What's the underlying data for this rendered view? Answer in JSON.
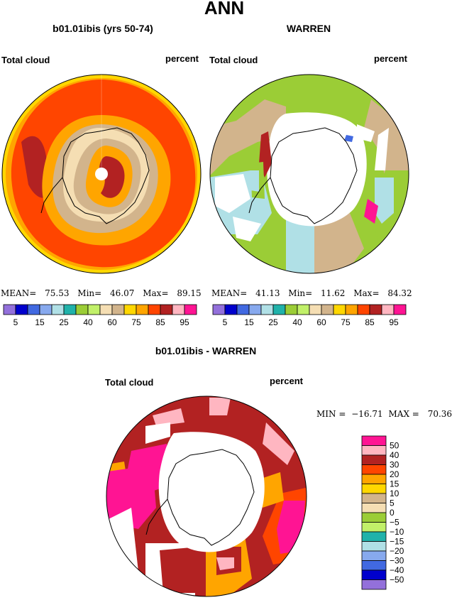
{
  "page": {
    "title": "ANN"
  },
  "colors": {
    "bg": "#ffffff",
    "palette": [
      "#9370db",
      "#0000cd",
      "#4169e1",
      "#87a9ee",
      "#b0e0e6",
      "#20b2aa",
      "#9bcd36",
      "#c1f069",
      "#f5deb3",
      "#d2b48c",
      "#ffd700",
      "#ffa500",
      "#ff4500",
      "#b22222",
      "#ffb6c1",
      "#ff1493"
    ],
    "diff_palette": [
      "#9370db",
      "#0000cd",
      "#4169e1",
      "#87a9ee",
      "#b0e0e6",
      "#20b2aa",
      "#c1f069",
      "#9bcd36",
      "#f5deb3",
      "#d2b48c",
      "#ffd700",
      "#ffa500",
      "#ff4500",
      "#b22222",
      "#ffb6c1",
      "#ff1493"
    ]
  },
  "chart_data": [
    {
      "type": "heatmap",
      "title": "b01.01ibis (yrs 50-74)",
      "left_label": "Total cloud",
      "right_label": "percent",
      "stats": {
        "mean_label": "MEAN=",
        "mean": "75.53",
        "min_label": "Min=",
        "min": "46.07",
        "max_label": "Max=",
        "max": "89.15"
      },
      "colorbar_ticks": [
        "5",
        "15",
        "25",
        "40",
        "60",
        "75",
        "85",
        "95"
      ]
    },
    {
      "type": "heatmap",
      "title": "WARREN",
      "left_label": "Total cloud",
      "right_label": "percent",
      "stats": {
        "mean_label": "MEAN=",
        "mean": "41.13",
        "min_label": "Min=",
        "min": "11.62",
        "max_label": "Max=",
        "max": "84.32"
      },
      "colorbar_ticks": [
        "5",
        "15",
        "25",
        "40",
        "60",
        "75",
        "85",
        "95"
      ]
    },
    {
      "type": "heatmap",
      "title": "b01.01ibis - WARREN",
      "left_label": "Total cloud",
      "right_label": "percent",
      "stats": {
        "min_label": "MIN =",
        "min": "−16.71",
        "max_label": "MAX =",
        "max": "70.36"
      },
      "colorbar_levels": [
        "50",
        "40",
        "30",
        "20",
        "15",
        "10",
        "5",
        "0",
        "−5",
        "−10",
        "−15",
        "−20",
        "−30",
        "−40",
        "−50"
      ]
    }
  ]
}
